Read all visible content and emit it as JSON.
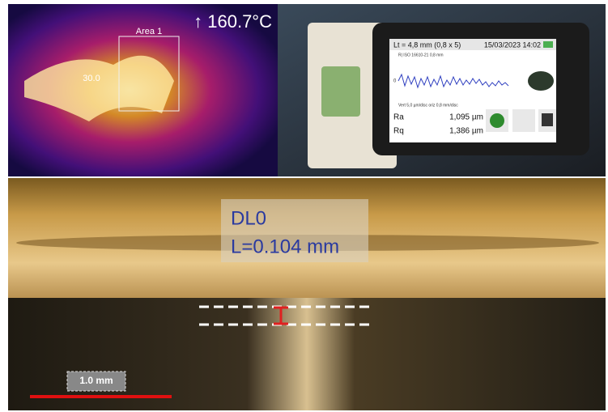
{
  "thermal": {
    "max_temp": "↑ 160.7°C",
    "area_label": "Area 1",
    "spot_label": "30.0"
  },
  "tablet": {
    "header": "Lt = 4,8 mm (0,8 x 5)",
    "datetime": "15/03/2023 14:02",
    "filter": "R| ISO 16610-21 0,8 mm",
    "axis_zero": "0",
    "scale_note": "Vert 5,0 µm/disc oriz 0,8 mm/disc",
    "results": [
      {
        "name": "Ra",
        "value": "1,095 µm"
      },
      {
        "name": "Rq",
        "value": "1,386 µm"
      }
    ]
  },
  "micrograph": {
    "label": "DL0",
    "length": "L=0.104 mm",
    "scale_bar": "1.0 mm"
  }
}
